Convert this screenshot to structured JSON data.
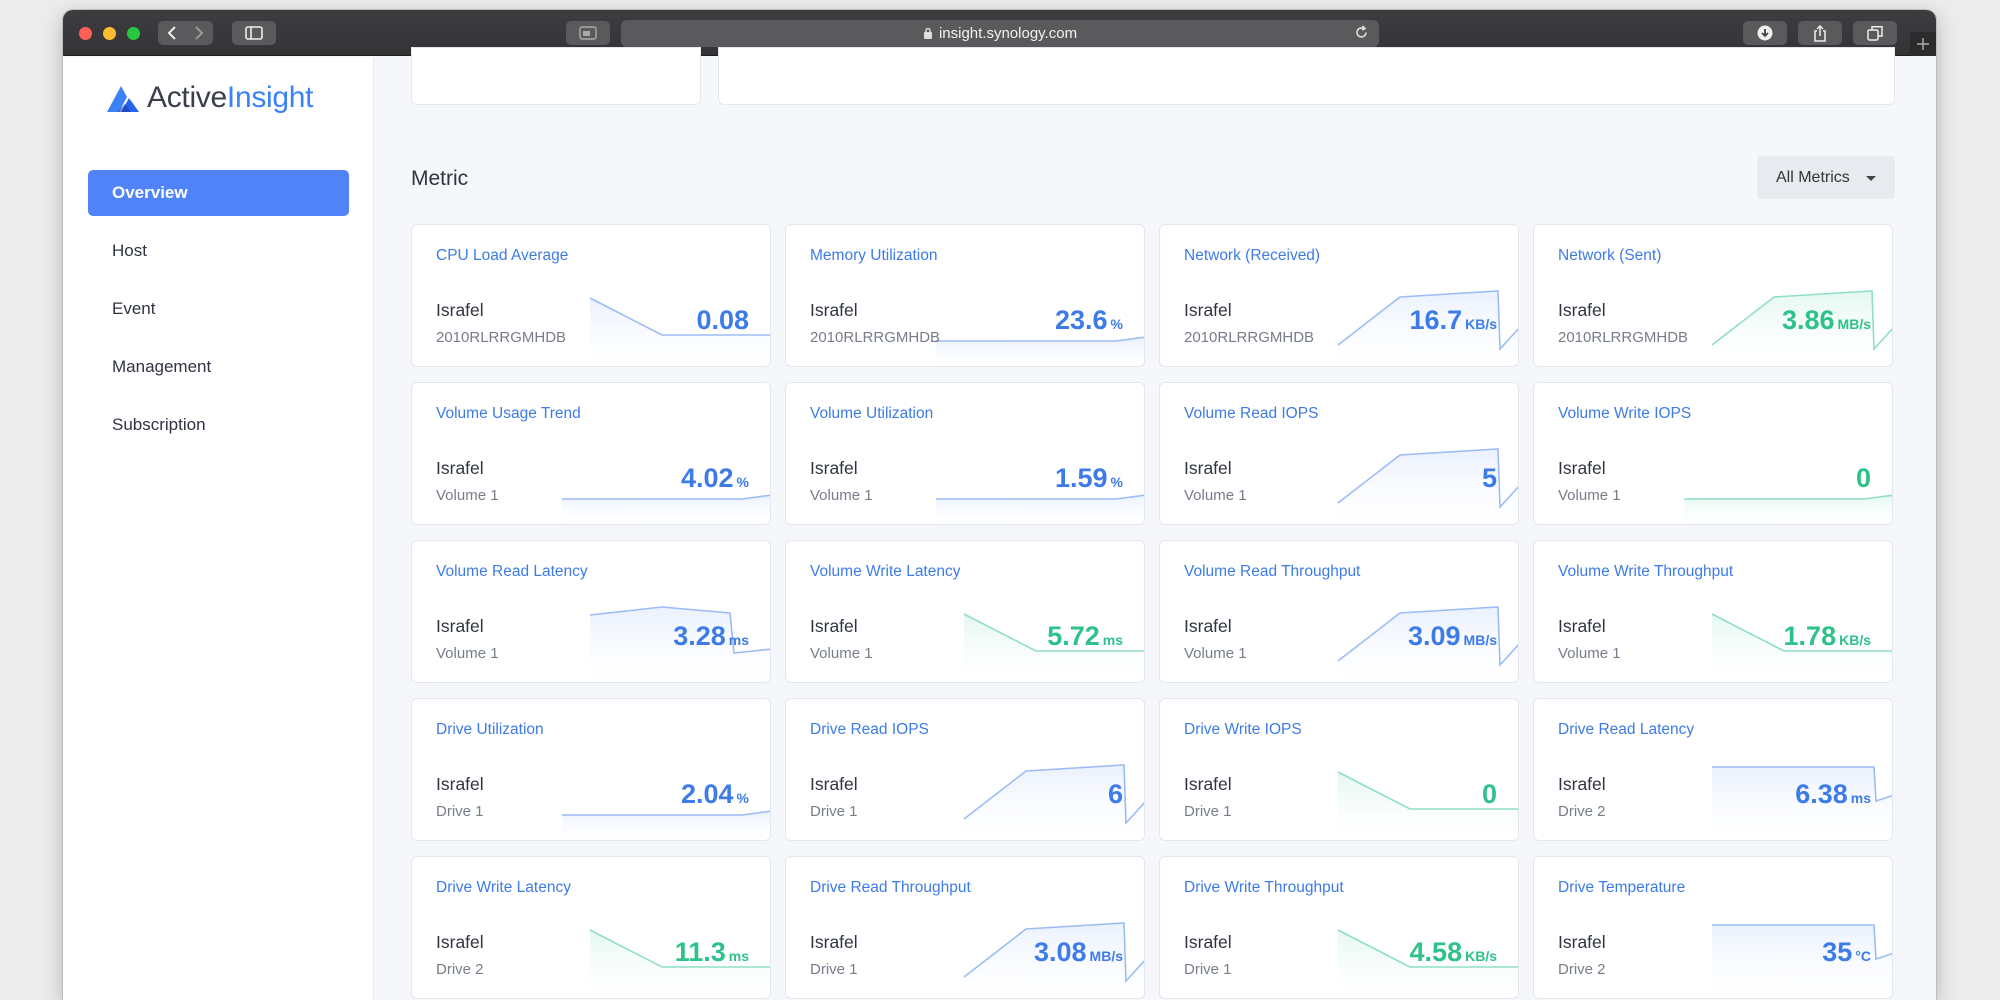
{
  "browser": {
    "url": "insight.synology.com"
  },
  "app": {
    "logo_part1": "Active",
    "logo_part2": "Insight"
  },
  "sidebar": {
    "items": [
      {
        "label": "Overview",
        "active": true
      },
      {
        "label": "Host",
        "active": false
      },
      {
        "label": "Event",
        "active": false
      },
      {
        "label": "Management",
        "active": false
      },
      {
        "label": "Subscription",
        "active": false
      }
    ]
  },
  "metric": {
    "title": "Metric",
    "filter_label": "All Metrics"
  },
  "colors": {
    "primary": "#4f83f7",
    "blue_value": "#3d7be8",
    "teal_value": "#2ec28a"
  },
  "cards": [
    {
      "title": "CPU Load Average",
      "host": "Israfel",
      "sub": "2010RLRRGMHDB",
      "value": "0.08",
      "unit": "",
      "color": "blue",
      "spark": "decline"
    },
    {
      "title": "Memory Utilization",
      "host": "Israfel",
      "sub": "2010RLRRGMHDB",
      "value": "23.6",
      "unit": "%",
      "color": "blue",
      "spark": "flat"
    },
    {
      "title": "Network (Received)",
      "host": "Israfel",
      "sub": "2010RLRRGMHDB",
      "value": "16.7",
      "unit": "KB/s",
      "color": "blue",
      "spark": "rise"
    },
    {
      "title": "Network (Sent)",
      "host": "Israfel",
      "sub": "2010RLRRGMHDB",
      "value": "3.86",
      "unit": "MB/s",
      "color": "teal",
      "spark": "rise"
    },
    {
      "title": "Volume Usage Trend",
      "host": "Israfel",
      "sub": "Volume 1",
      "value": "4.02",
      "unit": "%",
      "color": "blue",
      "spark": "flat"
    },
    {
      "title": "Volume Utilization",
      "host": "Israfel",
      "sub": "Volume 1",
      "value": "1.59",
      "unit": "%",
      "color": "blue",
      "spark": "flat"
    },
    {
      "title": "Volume Read IOPS",
      "host": "Israfel",
      "sub": "Volume 1",
      "value": "5",
      "unit": "",
      "color": "blue",
      "spark": "rise"
    },
    {
      "title": "Volume Write IOPS",
      "host": "Israfel",
      "sub": "Volume 1",
      "value": "0",
      "unit": "",
      "color": "teal",
      "spark": "flat"
    },
    {
      "title": "Volume Read Latency",
      "host": "Israfel",
      "sub": "Volume 1",
      "value": "3.28",
      "unit": "ms",
      "color": "blue",
      "spark": "hump"
    },
    {
      "title": "Volume Write Latency",
      "host": "Israfel",
      "sub": "Volume 1",
      "value": "5.72",
      "unit": "ms",
      "color": "teal",
      "spark": "decline"
    },
    {
      "title": "Volume Read Throughput",
      "host": "Israfel",
      "sub": "Volume 1",
      "value": "3.09",
      "unit": "MB/s",
      "color": "blue",
      "spark": "rise"
    },
    {
      "title": "Volume Write Throughput",
      "host": "Israfel",
      "sub": "Volume 1",
      "value": "1.78",
      "unit": "KB/s",
      "color": "teal",
      "spark": "decline"
    },
    {
      "title": "Drive Utilization",
      "host": "Israfel",
      "sub": "Drive 1",
      "value": "2.04",
      "unit": "%",
      "color": "blue",
      "spark": "flat"
    },
    {
      "title": "Drive Read IOPS",
      "host": "Israfel",
      "sub": "Drive 1",
      "value": "6",
      "unit": "",
      "color": "blue",
      "spark": "rise"
    },
    {
      "title": "Drive Write IOPS",
      "host": "Israfel",
      "sub": "Drive 1",
      "value": "0",
      "unit": "",
      "color": "teal",
      "spark": "decline"
    },
    {
      "title": "Drive Read Latency",
      "host": "Israfel",
      "sub": "Drive 2",
      "value": "6.38",
      "unit": "ms",
      "color": "blue",
      "spark": "plateau"
    },
    {
      "title": "Drive Write Latency",
      "host": "Israfel",
      "sub": "Drive 2",
      "value": "11.3",
      "unit": "ms",
      "color": "teal",
      "spark": "decline"
    },
    {
      "title": "Drive Read Throughput",
      "host": "Israfel",
      "sub": "Drive 1",
      "value": "3.08",
      "unit": "MB/s",
      "color": "blue",
      "spark": "rise"
    },
    {
      "title": "Drive Write Throughput",
      "host": "Israfel",
      "sub": "Drive 1",
      "value": "4.58",
      "unit": "KB/s",
      "color": "teal",
      "spark": "decline"
    },
    {
      "title": "Drive Temperature",
      "host": "Israfel",
      "sub": "Drive 2",
      "value": "35",
      "unit": "°C",
      "color": "blue",
      "spark": "plateau"
    }
  ]
}
